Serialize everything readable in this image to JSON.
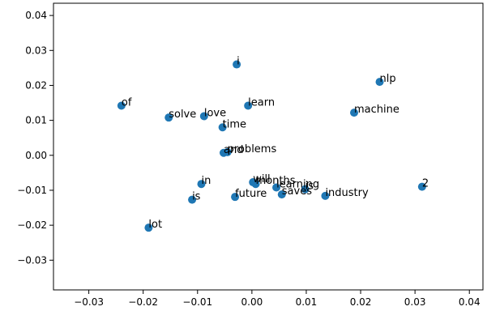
{
  "chart_data": {
    "type": "scatter",
    "title": "",
    "xlabel": "",
    "ylabel": "",
    "xlim": [
      -0.0365,
      0.0425
    ],
    "ylim": [
      -0.0385,
      0.0435
    ],
    "grid": false,
    "legend": "none",
    "marker_color": "#1f77b4",
    "x_ticks": [
      -0.03,
      -0.02,
      -0.01,
      0.0,
      0.01,
      0.02,
      0.03,
      0.04
    ],
    "x_tick_labels": [
      "−0.03",
      "−0.02",
      "−0.01",
      "0.00",
      "0.01",
      "0.02",
      "0.03",
      "0.04"
    ],
    "y_ticks": [
      0.04,
      0.03,
      0.02,
      0.01,
      0.0,
      -0.01,
      -0.02,
      -0.03
    ],
    "y_tick_labels": [
      "0.04",
      "0.03",
      "0.02",
      "0.01",
      "0.00",
      "−0.01",
      "−0.02",
      "−0.03"
    ],
    "points": [
      {
        "label": "i",
        "x": -0.0028,
        "y": 0.026
      },
      {
        "label": "nlp",
        "x": 0.0235,
        "y": 0.021
      },
      {
        "label": "of",
        "x": -0.024,
        "y": 0.0142
      },
      {
        "label": "learn",
        "x": -0.0007,
        "y": 0.0142
      },
      {
        "label": "machine",
        "x": 0.0188,
        "y": 0.0122
      },
      {
        "label": "solve",
        "x": -0.0153,
        "y": 0.0108
      },
      {
        "label": "love",
        "x": -0.0088,
        "y": 0.0112
      },
      {
        "label": "time",
        "x": -0.0054,
        "y": 0.008
      },
      {
        "label": "and",
        "x": -0.0052,
        "y": 0.0007
      },
      {
        "label": "problems",
        "x": -0.0045,
        "y": 0.0009
      },
      {
        "label": "in",
        "x": -0.0093,
        "y": -0.0082
      },
      {
        "label": "will",
        "x": 0.0002,
        "y": -0.0077
      },
      {
        "label": "months",
        "x": 0.0007,
        "y": -0.0082
      },
      {
        "label": "learning",
        "x": 0.0045,
        "y": -0.0092
      },
      {
        "label": "saves",
        "x": 0.0055,
        "y": -0.0112
      },
      {
        "label": "is",
        "x": 0.0098,
        "y": -0.0097
      },
      {
        "label": "industry",
        "x": 0.0135,
        "y": -0.0116
      },
      {
        "label": "future",
        "x": -0.0031,
        "y": -0.0119
      },
      {
        "label": "is",
        "x": -0.011,
        "y": -0.0127
      },
      {
        "label": "2",
        "x": 0.0313,
        "y": -0.009
      },
      {
        "label": "lot",
        "x": -0.019,
        "y": -0.0207
      }
    ]
  }
}
